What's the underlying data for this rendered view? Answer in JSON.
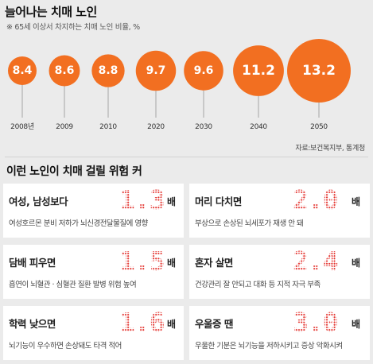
{
  "header": {
    "title": "늘어나는 치매 노인",
    "subtitle": "※ 65세 이상서 차지하는 치매 노인 비율, %"
  },
  "chart_data": {
    "type": "bubble",
    "title": "늘어나는 치매 노인",
    "subtitle": "※ 65세 이상서 차지하는 치매 노인 비율, %",
    "categories": [
      "2008년",
      "2009",
      "2010",
      "2020",
      "2030",
      "2040",
      "2050"
    ],
    "values": [
      8.4,
      8.6,
      8.8,
      9.7,
      9.6,
      11.2,
      13.2
    ],
    "value_labels": [
      "8.4",
      "8.6",
      "8.8",
      "9.7",
      "9.6",
      "11.2",
      "13.2"
    ],
    "source": "자료:보건복지부, 통계청",
    "color": "#f26f21"
  },
  "section": {
    "title": "이런 노인이 치매 걸릴 위험 커"
  },
  "risks": [
    {
      "label": "여성, 남성보다",
      "value": "1.3",
      "unit": "배",
      "desc": "여성호르몬 분비 저하가 뇌신경전달물질에 영향"
    },
    {
      "label": "머리 다치면",
      "value": "2.0",
      "unit": "배",
      "desc": "부상으로 손상된 뇌세포가 재생 안 돼"
    },
    {
      "label": "담배 피우면",
      "value": "1.5",
      "unit": "배",
      "desc": "흡연이 뇌혈관 · 심혈관 질환 발병 위험 높여"
    },
    {
      "label": "혼자 살면",
      "value": "2.4",
      "unit": "배",
      "desc": "건강관리 잘 안되고 대화 등 지적 자극 부족"
    },
    {
      "label": "학력 낮으면",
      "value": "1.6",
      "unit": "배",
      "desc": "뇌기능이 우수하면 손상돼도 타격 적어"
    },
    {
      "label": "우울증 땐",
      "value": "3.0",
      "unit": "배",
      "desc": "우울한 기분은 뇌기능을 저하시키고 증상 악화시켜"
    }
  ],
  "colors": {
    "accent": "#f26f21",
    "value_red": "#e4342f",
    "background": "#ebebeb",
    "card": "#ffffff"
  }
}
